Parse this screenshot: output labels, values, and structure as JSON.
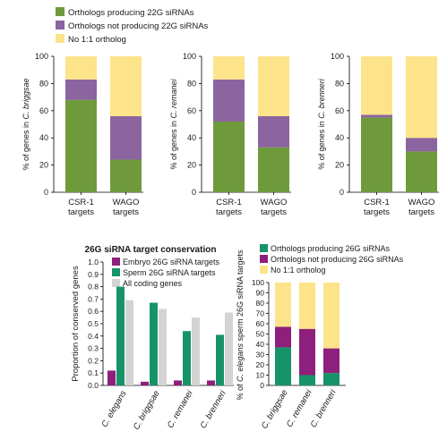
{
  "colors": {
    "green": "#6e9a3c",
    "purple": "#8b64a0",
    "yellow": "#fde389",
    "magenta": "#8e1f7c",
    "teal": "#17936a",
    "gray": "#d3d3d3"
  },
  "top_legend": [
    {
      "label": "Orthologs producing 22G siRNAs",
      "color": "#6e9a3c"
    },
    {
      "label": "Orthologs not producing 22G siRNAs",
      "color": "#8b64a0"
    },
    {
      "label": "No 1:1 ortholog",
      "color": "#fde389"
    }
  ],
  "chart_data": [
    {
      "type": "bar",
      "stacked": true,
      "title": "",
      "ylabel_prefix": "% of genes in ",
      "ylabel_species": "C. briggsae",
      "ylim": [
        0,
        100
      ],
      "yticks": [
        "0",
        "20",
        "40",
        "60",
        "80",
        "100"
      ],
      "categories": [
        [
          "CSR-1",
          "targets"
        ],
        [
          "WAGO",
          "targets"
        ]
      ],
      "series": [
        {
          "name": "Orthologs producing 22G siRNAs",
          "values": [
            68,
            24
          ]
        },
        {
          "name": "Orthologs not producing 22G siRNAs",
          "values": [
            15,
            32
          ]
        },
        {
          "name": "No 1:1 ortholog",
          "values": [
            17,
            44
          ]
        }
      ]
    },
    {
      "type": "bar",
      "stacked": true,
      "title": "",
      "ylabel_prefix": "% of genes in ",
      "ylabel_species": "C. remanei",
      "ylim": [
        0,
        100
      ],
      "yticks": [
        "0",
        "20",
        "40",
        "60",
        "80",
        "100"
      ],
      "categories": [
        [
          "CSR-1",
          "targets"
        ],
        [
          "WAGO",
          "targets"
        ]
      ],
      "series": [
        {
          "name": "Orthologs producing 22G siRNAs",
          "values": [
            52,
            33
          ]
        },
        {
          "name": "Orthologs not producing 22G siRNAs",
          "values": [
            31,
            23
          ]
        },
        {
          "name": "No 1:1 ortholog",
          "values": [
            17,
            44
          ]
        }
      ]
    },
    {
      "type": "bar",
      "stacked": true,
      "title": "",
      "ylabel_prefix": "% of genes in ",
      "ylabel_species": "C. brenneri",
      "ylim": [
        0,
        100
      ],
      "yticks": [
        "0",
        "20",
        "40",
        "60",
        "80",
        "100"
      ],
      "categories": [
        [
          "CSR-1",
          "targets"
        ],
        [
          "WAGO",
          "targets"
        ]
      ],
      "series": [
        {
          "name": "Orthologs producing 22G siRNAs",
          "values": [
            55,
            30
          ]
        },
        {
          "name": "Orthologs not producing 22G siRNAs",
          "values": [
            2,
            10
          ]
        },
        {
          "name": "No 1:1 ortholog",
          "values": [
            43,
            60
          ]
        }
      ]
    },
    {
      "type": "bar",
      "stacked": false,
      "title": "26G siRNA target conservation",
      "ylabel": "Proportion of conserved genes",
      "ylim": [
        0,
        1.0
      ],
      "yticks": [
        "0.0",
        "0.1",
        "0.2",
        "0.3",
        "0.4",
        "0.5",
        "0.6",
        "0.7",
        "0.8",
        "0.9",
        "1.0"
      ],
      "categories": [
        "C. elegans",
        "C. briggsae",
        "C. remanei",
        "C. brenneri"
      ],
      "series": [
        {
          "name": "Embryo 26G siRNA targets",
          "values": [
            0.12,
            0.03,
            0.04,
            0.04
          ]
        },
        {
          "name": "Sperm 26G siRNA targets",
          "values": [
            0.8,
            0.67,
            0.44,
            0.41
          ]
        },
        {
          "name": "All coding genes",
          "values": [
            0.69,
            0.62,
            0.55,
            0.59
          ]
        }
      ]
    },
    {
      "type": "bar",
      "stacked": true,
      "title": "",
      "ylabel_prefix": "% of ",
      "ylabel_species": "C. elegans",
      "ylabel_suffix": " sperm 26G siRNA targets",
      "ylim": [
        0,
        100
      ],
      "yticks": [
        "0",
        "10",
        "20",
        "30",
        "40",
        "50",
        "60",
        "70",
        "80",
        "90",
        "100"
      ],
      "categories": [
        "C. briggsae",
        "C. remanei",
        "C. brenneri"
      ],
      "series": [
        {
          "name": "Orthologs producing 26G siRNAs",
          "values": [
            37,
            10,
            12
          ]
        },
        {
          "name": "Orthologs not producing 26G siRNAs",
          "values": [
            20,
            45,
            24
          ]
        },
        {
          "name": "No 1:1 ortholog",
          "values": [
            43,
            45,
            64
          ]
        }
      ]
    }
  ]
}
